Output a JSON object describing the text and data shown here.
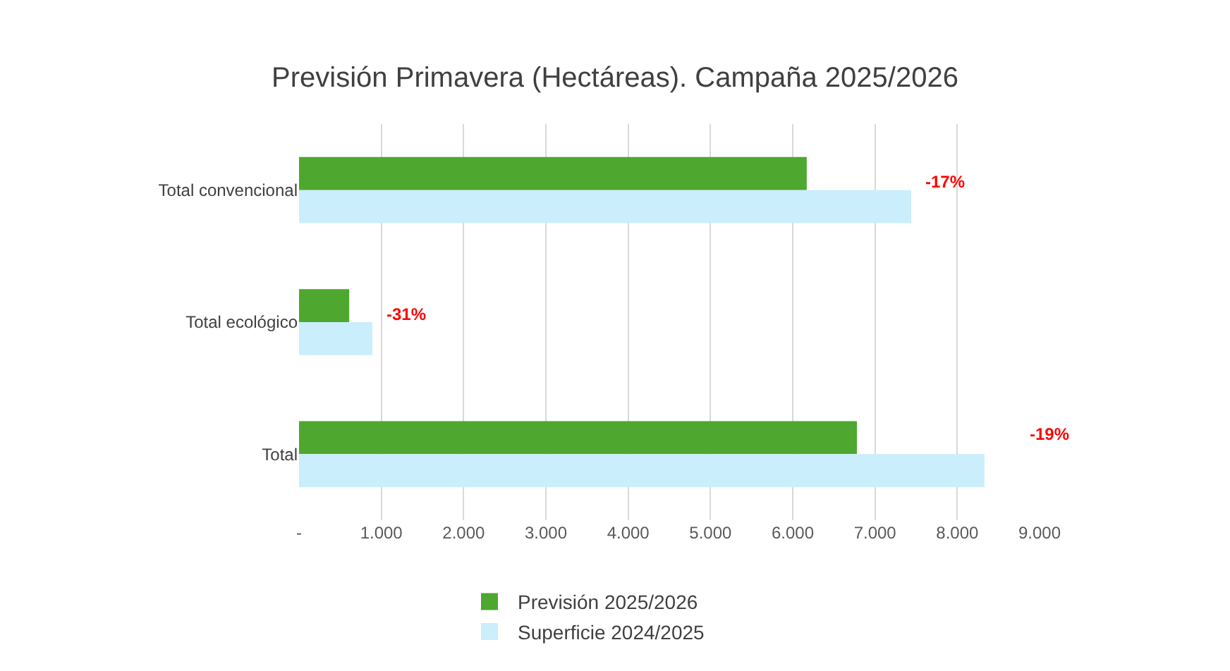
{
  "chart_data": {
    "type": "bar",
    "orientation": "horizontal",
    "title": "Previsión Primavera (Hectáreas). Campaña 2025/2026",
    "categories": [
      "Total convencional",
      "Total ecológico",
      "Total"
    ],
    "series": [
      {
        "name": "Previsión 2025/2026",
        "color": "#4ea72e",
        "values": [
          6170,
          610,
          6780
        ]
      },
      {
        "name": "Superficie 2024/2025",
        "color": "#caeefb",
        "values": [
          7440,
          890,
          8330
        ]
      }
    ],
    "xlim": [
      0,
      9000
    ],
    "xticks": [
      {
        "value": 0,
        "label": "-"
      },
      {
        "value": 1000,
        "label": "1.000"
      },
      {
        "value": 2000,
        "label": "2.000"
      },
      {
        "value": 3000,
        "label": "3.000"
      },
      {
        "value": 4000,
        "label": "4.000"
      },
      {
        "value": 5000,
        "label": "5.000"
      },
      {
        "value": 6000,
        "label": "6.000"
      },
      {
        "value": 7000,
        "label": "7.000"
      },
      {
        "value": 8000,
        "label": "8.000"
      },
      {
        "value": 9000,
        "label": "9.000"
      }
    ],
    "annotations": [
      "-17%",
      "-31%",
      "-19%"
    ],
    "grid": "x",
    "legend": "bottom"
  }
}
